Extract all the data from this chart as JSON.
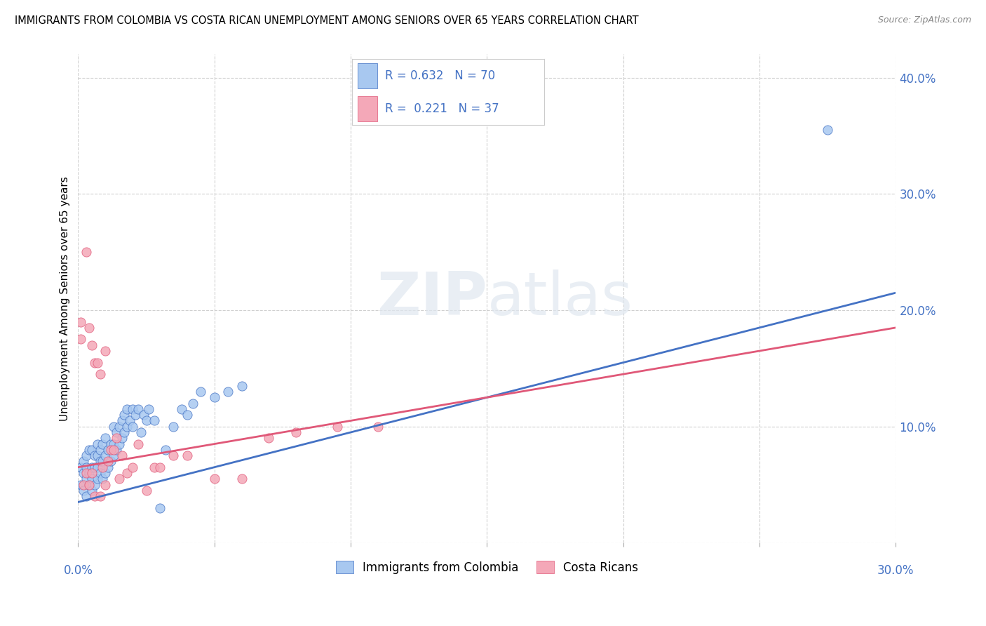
{
  "title": "IMMIGRANTS FROM COLOMBIA VS COSTA RICAN UNEMPLOYMENT AMONG SENIORS OVER 65 YEARS CORRELATION CHART",
  "source": "Source: ZipAtlas.com",
  "ylabel": "Unemployment Among Seniors over 65 years",
  "legend_blue_label": "Immigrants from Colombia",
  "legend_pink_label": "Costa Ricans",
  "blue_color": "#A8C8F0",
  "pink_color": "#F4A8B8",
  "line_blue": "#4472C4",
  "line_pink": "#E05878",
  "blue_line_start_y": 0.035,
  "blue_line_end_y": 0.215,
  "pink_line_start_y": 0.065,
  "pink_line_end_y": 0.185,
  "xlim": [
    0,
    0.3
  ],
  "ylim": [
    0,
    0.42
  ],
  "blue_scatter_x": [
    0.001,
    0.001,
    0.002,
    0.002,
    0.002,
    0.003,
    0.003,
    0.003,
    0.003,
    0.004,
    0.004,
    0.004,
    0.005,
    0.005,
    0.005,
    0.005,
    0.006,
    0.006,
    0.006,
    0.007,
    0.007,
    0.007,
    0.007,
    0.008,
    0.008,
    0.008,
    0.009,
    0.009,
    0.009,
    0.01,
    0.01,
    0.01,
    0.011,
    0.011,
    0.012,
    0.012,
    0.013,
    0.013,
    0.013,
    0.014,
    0.014,
    0.015,
    0.015,
    0.016,
    0.016,
    0.017,
    0.017,
    0.018,
    0.018,
    0.019,
    0.02,
    0.02,
    0.021,
    0.022,
    0.023,
    0.024,
    0.025,
    0.026,
    0.028,
    0.03,
    0.032,
    0.035,
    0.038,
    0.04,
    0.042,
    0.045,
    0.05,
    0.055,
    0.06,
    0.275
  ],
  "blue_scatter_y": [
    0.05,
    0.065,
    0.045,
    0.06,
    0.07,
    0.04,
    0.055,
    0.065,
    0.075,
    0.05,
    0.06,
    0.08,
    0.045,
    0.055,
    0.065,
    0.08,
    0.05,
    0.065,
    0.075,
    0.055,
    0.065,
    0.075,
    0.085,
    0.06,
    0.07,
    0.08,
    0.055,
    0.07,
    0.085,
    0.06,
    0.075,
    0.09,
    0.065,
    0.08,
    0.07,
    0.085,
    0.075,
    0.085,
    0.1,
    0.08,
    0.095,
    0.085,
    0.1,
    0.09,
    0.105,
    0.095,
    0.11,
    0.1,
    0.115,
    0.105,
    0.1,
    0.115,
    0.11,
    0.115,
    0.095,
    0.11,
    0.105,
    0.115,
    0.105,
    0.03,
    0.08,
    0.1,
    0.115,
    0.11,
    0.12,
    0.13,
    0.125,
    0.13,
    0.135,
    0.355
  ],
  "pink_scatter_x": [
    0.001,
    0.001,
    0.002,
    0.003,
    0.003,
    0.004,
    0.004,
    0.005,
    0.005,
    0.006,
    0.006,
    0.007,
    0.008,
    0.008,
    0.009,
    0.01,
    0.01,
    0.011,
    0.012,
    0.013,
    0.014,
    0.015,
    0.016,
    0.018,
    0.02,
    0.022,
    0.025,
    0.028,
    0.03,
    0.035,
    0.04,
    0.05,
    0.06,
    0.07,
    0.08,
    0.095,
    0.11
  ],
  "pink_scatter_y": [
    0.19,
    0.175,
    0.05,
    0.25,
    0.06,
    0.185,
    0.05,
    0.17,
    0.06,
    0.155,
    0.04,
    0.155,
    0.145,
    0.04,
    0.065,
    0.165,
    0.05,
    0.07,
    0.08,
    0.08,
    0.09,
    0.055,
    0.075,
    0.06,
    0.065,
    0.085,
    0.045,
    0.065,
    0.065,
    0.075,
    0.075,
    0.055,
    0.055,
    0.09,
    0.095,
    0.1,
    0.1
  ]
}
